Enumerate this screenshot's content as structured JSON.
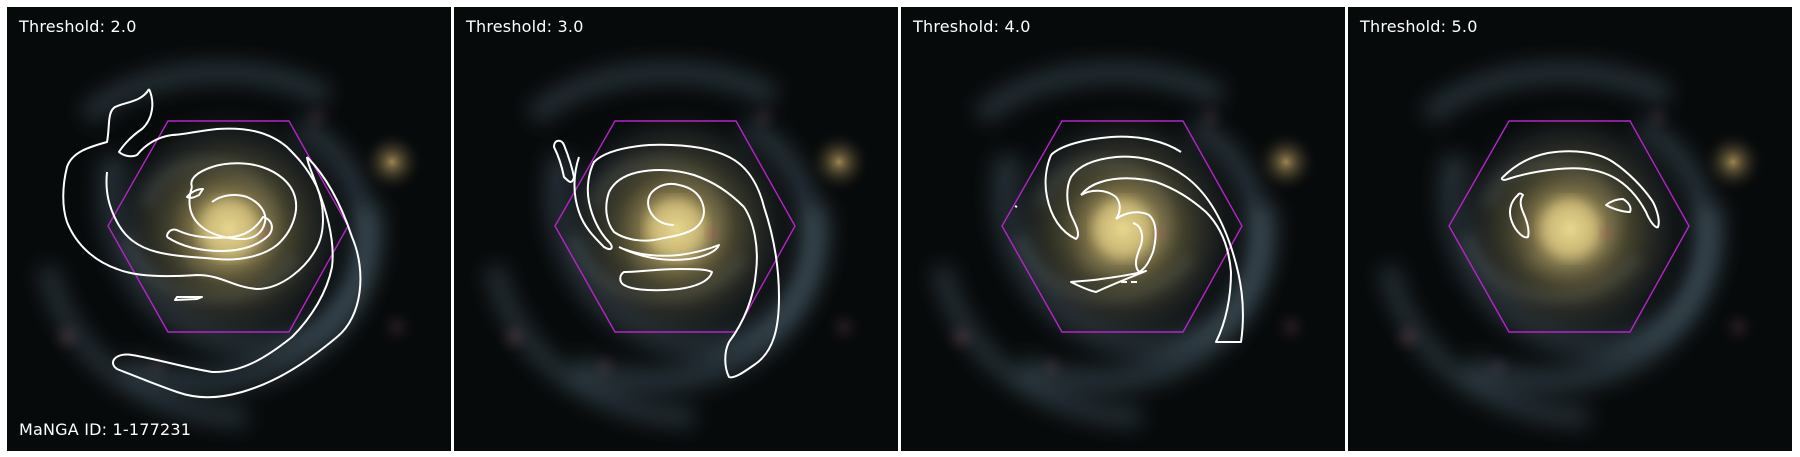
{
  "panels": [
    {
      "threshold_label": "Threshold: 2.0",
      "id_label": "MaNGA ID: 1-177231"
    },
    {
      "threshold_label": "Threshold: 3.0"
    },
    {
      "threshold_label": "Threshold: 4.0"
    },
    {
      "threshold_label": "Threshold: 5.0"
    }
  ],
  "colors": {
    "contour": "#ffffff",
    "hexagon": "#b325c8",
    "label": "#ffffff"
  }
}
